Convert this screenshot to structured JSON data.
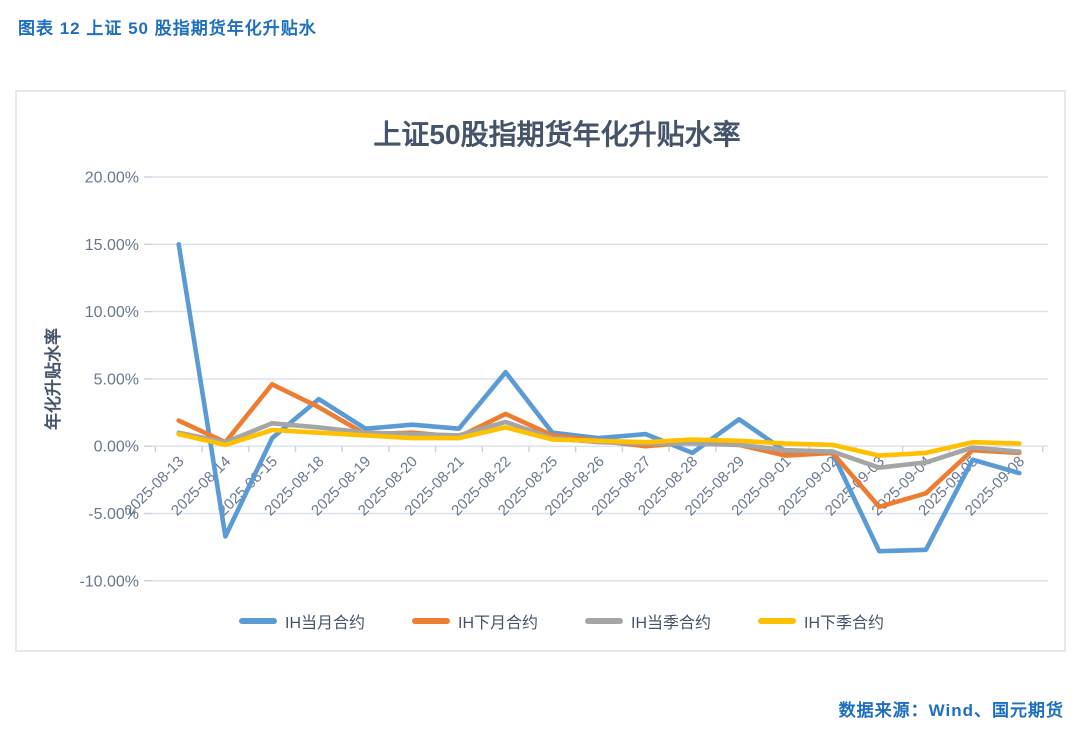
{
  "page": {
    "header": "图表 12 上证 50 股指期货年化升贴水",
    "source": "数据来源：Wind、国元期货"
  },
  "chart_data": {
    "type": "line",
    "title": "上证50股指期货年化升贴水率",
    "ylabel": "年化升贴水率",
    "xlabel": "",
    "ylim": [
      -10,
      20
    ],
    "y_ticks": [
      "20.00%",
      "15.00%",
      "10.00%",
      "5.00%",
      "0.00%",
      "-5.00%",
      "-10.00%"
    ],
    "y_tick_values": [
      20,
      15,
      10,
      5,
      0,
      -5,
      -10
    ],
    "grid": true,
    "legend_position": "bottom",
    "categories": [
      "2025-08-13",
      "2025-08-14",
      "2025-08-15",
      "2025-08-18",
      "2025-08-19",
      "2025-08-20",
      "2025-08-21",
      "2025-08-22",
      "2025-08-25",
      "2025-08-26",
      "2025-08-27",
      "2025-08-28",
      "2025-08-29",
      "2025-09-01",
      "2025-09-02",
      "2025-09-03",
      "2025-09-04",
      "2025-09-05",
      "2025-09-08"
    ],
    "series": [
      {
        "name": "IH当月合约",
        "color": "#5B9BD5",
        "values": [
          15.0,
          -6.7,
          0.6,
          3.5,
          1.3,
          1.6,
          1.3,
          5.5,
          1.0,
          0.6,
          0.9,
          -0.5,
          2.0,
          -0.4,
          -0.5,
          -7.8,
          -7.7,
          -1.0,
          -2.0
        ]
      },
      {
        "name": "IH下月合约",
        "color": "#ED7D31",
        "values": [
          1.9,
          0.3,
          4.6,
          2.9,
          0.9,
          1.0,
          0.7,
          2.4,
          0.8,
          0.4,
          0.0,
          0.3,
          0.1,
          -0.7,
          -0.5,
          -4.5,
          -3.5,
          -0.3,
          -0.5
        ]
      },
      {
        "name": "IH当季合约",
        "color": "#A5A5A5",
        "values": [
          1.0,
          0.3,
          1.7,
          1.4,
          1.0,
          0.9,
          0.8,
          1.8,
          0.6,
          0.3,
          0.2,
          0.2,
          0.1,
          -0.3,
          -0.4,
          -1.6,
          -1.2,
          -0.1,
          -0.4
        ]
      },
      {
        "name": "IH下季合约",
        "color": "#FFC000",
        "values": [
          0.9,
          0.1,
          1.2,
          1.0,
          0.8,
          0.6,
          0.6,
          1.4,
          0.5,
          0.4,
          0.3,
          0.5,
          0.4,
          0.2,
          0.1,
          -0.7,
          -0.5,
          0.3,
          0.2
        ]
      }
    ],
    "colors": {
      "gridline": "#dbe1ea",
      "axis_tick": "#c9d2de",
      "tick_label": "#68788f",
      "title_text": "#44546a",
      "caption_text": "#1e6fc0"
    }
  }
}
